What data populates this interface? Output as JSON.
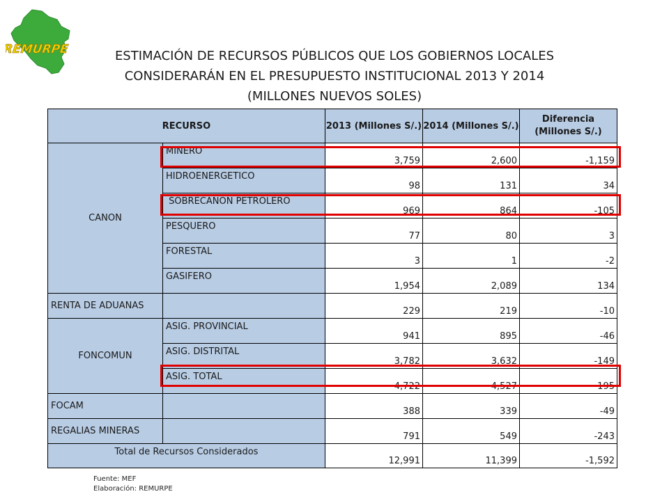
{
  "logo": {
    "text": "REMURPE",
    "map_color": "#3cab3c",
    "text_color": "#f3d000"
  },
  "title": {
    "line1": "ESTIMACIÓN DE RECURSOS PÚBLICOS QUE LOS GOBIERNOS LOCALES",
    "line2": "CONSIDERARÁN  EN EL PRESUPUESTO INSTITUCIONAL 2013 Y 2014",
    "line3": "(MILLONES NUEVOS SOLES)"
  },
  "table": {
    "headers": {
      "recurso": "RECURSO",
      "y2013": "2013 (Millones S/.)",
      "y2014": "2014 (Millones S/.)",
      "diff_line1": "Diferencia",
      "diff_line2": "(Millones S/.)"
    },
    "groups": {
      "canon": "CANON",
      "renta": "RENTA DE ADUANAS",
      "foncomun": "FONCOMUN",
      "focam": "FOCAM",
      "regalias": "REGALIAS MINERAS",
      "total": "Total de Recursos Considerados"
    },
    "rows": [
      {
        "label": "MINERO",
        "y2013": "3,759",
        "y2014": "2,600",
        "diff": "-1,159"
      },
      {
        "label": "HIDROENERGETICO",
        "y2013": "98",
        "y2014": "131",
        "diff": "34"
      },
      {
        "label": " SOBRECANON PETROLERO",
        "y2013": "969",
        "y2014": "864",
        "diff": "-105"
      },
      {
        "label": "PESQUERO",
        "y2013": "77",
        "y2014": "80",
        "diff": "3"
      },
      {
        "label": "FORESTAL",
        "y2013": "3",
        "y2014": "1",
        "diff": "-2"
      },
      {
        "label": "GASIFERO",
        "y2013": "1,954",
        "y2014": "2,089",
        "diff": "134"
      },
      {
        "label": "",
        "y2013": "229",
        "y2014": "219",
        "diff": "-10"
      },
      {
        "label": "ASIG. PROVINCIAL",
        "y2013": "941",
        "y2014": "895",
        "diff": "-46"
      },
      {
        "label": "ASIG. DISTRITAL",
        "y2013": "3,782",
        "y2014": "3,632",
        "diff": "-149"
      },
      {
        "label": "ASIG. TOTAL",
        "y2013": "4,722",
        "y2014": "4,527",
        "diff": "-195"
      },
      {
        "label": "",
        "y2013": "388",
        "y2014": "339",
        "diff": "-49"
      },
      {
        "label": "",
        "y2013": "791",
        "y2014": "549",
        "diff": "-243"
      },
      {
        "label": "",
        "y2013": "12,991",
        "y2014": "11,399",
        "diff": "-1,592"
      }
    ]
  },
  "highlight_color": "#e00000",
  "header_color": "#b8cce4",
  "footer": {
    "source": "Fuente: MEF",
    "elaboration": "Elaboración: REMURPE"
  }
}
